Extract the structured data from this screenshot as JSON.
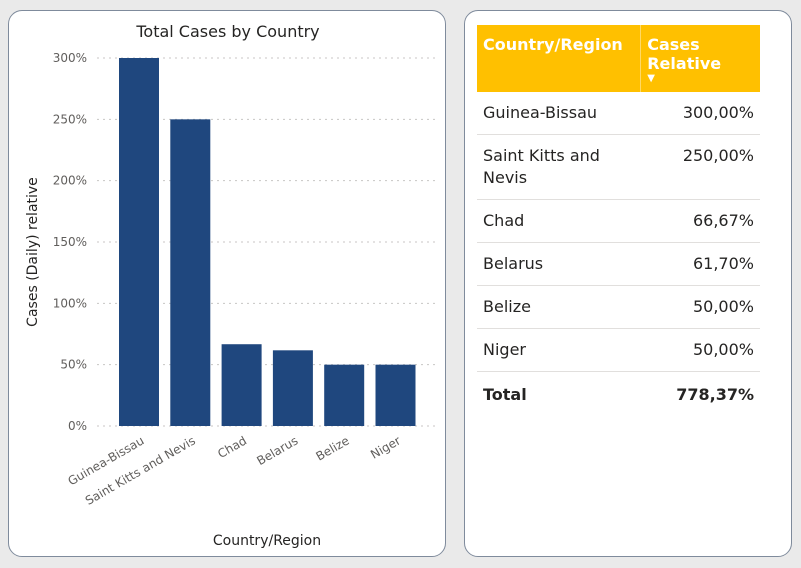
{
  "chart_data": {
    "type": "bar",
    "title": "Total Cases by Country",
    "xlabel": "Country/Region",
    "ylabel": "Cases (Daily) relative",
    "categories": [
      "Guinea-Bissau",
      "Saint Kitts and Nevis",
      "Chad",
      "Belarus",
      "Belize",
      "Niger"
    ],
    "values": [
      300,
      250,
      66.67,
      61.7,
      50,
      50
    ],
    "ylim": [
      0,
      300
    ],
    "yticks": [
      "0%",
      "50%",
      "100%",
      "150%",
      "200%",
      "250%",
      "300%"
    ],
    "grid": true,
    "bar_color": "#1f477e"
  },
  "table": {
    "headers": [
      "Country/Region",
      "Cases Relative"
    ],
    "sort_indicator": "descending",
    "rows": [
      {
        "country": "Guinea-Bissau",
        "value": "300,00%"
      },
      {
        "country": "Saint Kitts and Nevis",
        "value": "250,00%"
      },
      {
        "country": "Chad",
        "value": "66,67%"
      },
      {
        "country": "Belarus",
        "value": "61,70%"
      },
      {
        "country": "Belize",
        "value": "50,00%"
      },
      {
        "country": "Niger",
        "value": "50,00%"
      }
    ],
    "total_label": "Total",
    "total_value": "778,37%",
    "header_color": "#ffc000"
  }
}
